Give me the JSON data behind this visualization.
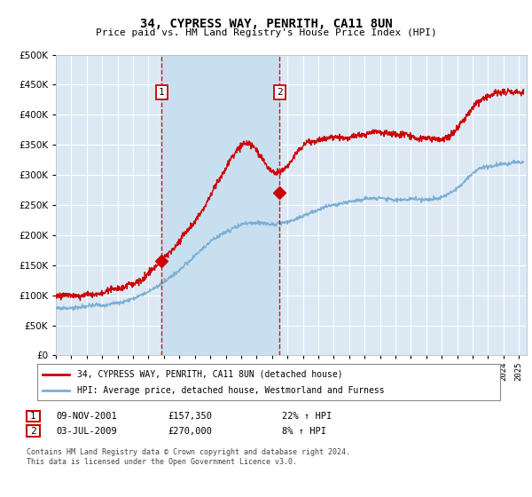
{
  "title": "34, CYPRESS WAY, PENRITH, CA11 8UN",
  "subtitle": "Price paid vs. HM Land Registry's House Price Index (HPI)",
  "background_color": "#ffffff",
  "plot_bg_color": "#dce9f5",
  "grid_color": "#ffffff",
  "red_line_color": "#cc0000",
  "blue_line_color": "#7bafd4",
  "vline_color": "#cc0000",
  "shade_color": "#c8dff0",
  "sale1_date_num": 2001.86,
  "sale1_price": 157350,
  "sale2_date_num": 2009.5,
  "sale2_price": 270000,
  "legend_label_red": "34, CYPRESS WAY, PENRITH, CA11 8UN (detached house)",
  "legend_label_blue": "HPI: Average price, detached house, Westmorland and Furness",
  "annotation1_label": "09-NOV-2001",
  "annotation1_price": "£157,350",
  "annotation1_hpi": "22% ↑ HPI",
  "annotation2_label": "03-JUL-2009",
  "annotation2_price": "£270,000",
  "annotation2_hpi": "8% ↑ HPI",
  "footer_text": "Contains HM Land Registry data © Crown copyright and database right 2024.\nThis data is licensed under the Open Government Licence v3.0.",
  "ylim_min": 0,
  "ylim_max": 500000,
  "xlim_min": 1995.0,
  "xlim_max": 2025.5,
  "n_points": 1500
}
